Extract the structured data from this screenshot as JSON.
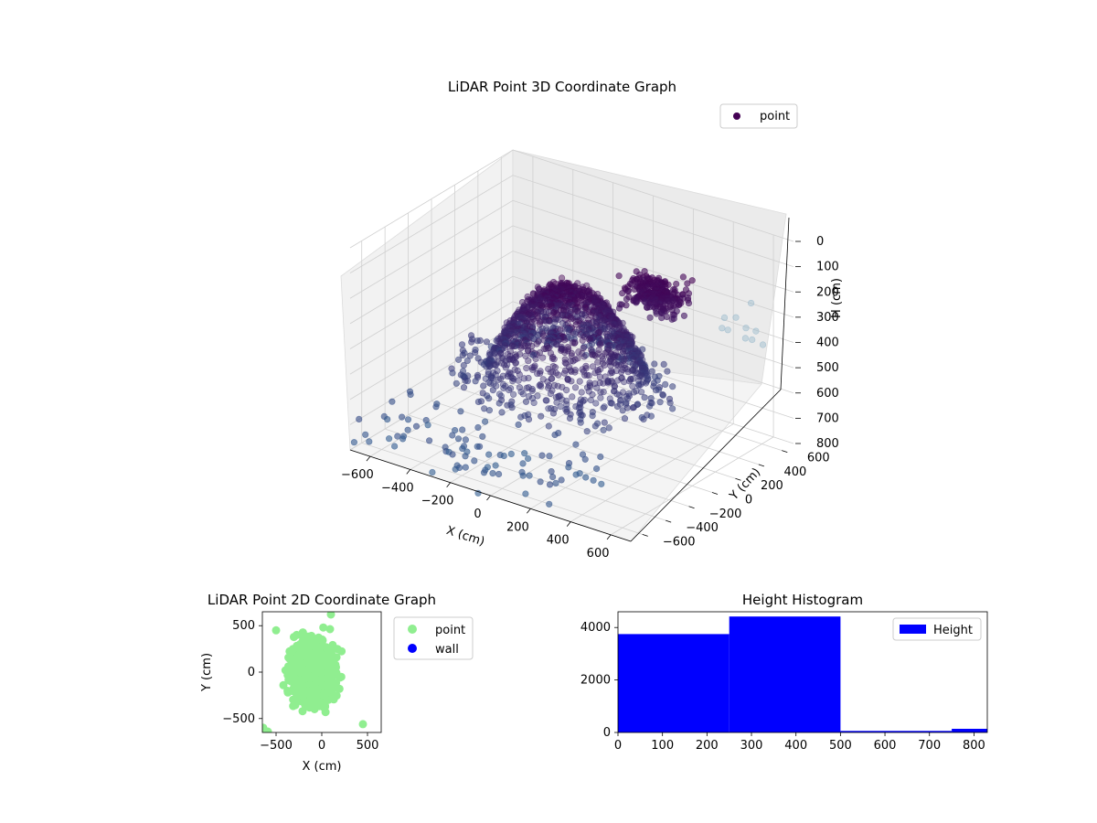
{
  "chart_data": [
    {
      "type": "scatter3d",
      "title": "LiDAR Point 3D Coordinate Graph",
      "xlabel": "X (cm)",
      "ylabel": "Y (cm)",
      "zlabel": "H (cm)",
      "xlim": [
        -700,
        700
      ],
      "ylim": [
        -700,
        700
      ],
      "zlim": [
        800,
        0
      ],
      "xticks": [
        "−600",
        "−400",
        "−200",
        "0",
        "200",
        "400",
        "600"
      ],
      "yticks": [
        "−600",
        "−400",
        "−200",
        "0",
        "200",
        "400",
        "600"
      ],
      "zticks": [
        "0",
        "100",
        "200",
        "300",
        "400",
        "500",
        "600",
        "700",
        "800"
      ],
      "legend": {
        "entries": [
          "point"
        ],
        "placement": "top-right"
      },
      "grid": true,
      "colormap": "viridis",
      "series": [
        {
          "name": "point",
          "color": "#440154",
          "approximate_cloud": "dense dome of points centred near X≈-100, Y≈150, H 300–600 cm, with a denser cluster at X≈200, Y≈400, H≈300, and scattered low points near H≈800 in the X<0, Y<-200 region"
        }
      ]
    },
    {
      "type": "scatter",
      "title": "LiDAR Point 2D Coordinate Graph",
      "xlabel": "X (cm)",
      "ylabel": "Y (cm)",
      "xlim": [
        -650,
        650
      ],
      "ylim": [
        -650,
        650
      ],
      "xticks": [
        "−500",
        "0",
        "500"
      ],
      "yticks": [
        "−500",
        "0",
        "500"
      ],
      "legend": {
        "entries": [
          "point",
          "wall"
        ],
        "placement": "outside-right"
      },
      "series": [
        {
          "name": "point",
          "color": "#90ee90",
          "approximate_extent": {
            "x": [
              -600,
              450
            ],
            "y": [
              -650,
              620
            ]
          }
        },
        {
          "name": "wall",
          "color": "#0000ff",
          "values": []
        }
      ]
    },
    {
      "type": "bar",
      "title": "Height Histogram",
      "xlim": [
        0,
        830
      ],
      "ylim": [
        0,
        4600
      ],
      "xticks": [
        "0",
        "100",
        "200",
        "300",
        "400",
        "500",
        "600",
        "700",
        "800"
      ],
      "yticks": [
        "0",
        "2000",
        "4000"
      ],
      "legend": {
        "entries": [
          "Height"
        ],
        "placement": "top-right"
      },
      "series": [
        {
          "name": "Height",
          "color": "#0000ff",
          "bins": [
            {
              "from": 0,
              "to": 250,
              "count": 3750
            },
            {
              "from": 250,
              "to": 500,
              "count": 4420
            },
            {
              "from": 500,
              "to": 750,
              "count": 60
            },
            {
              "from": 750,
              "to": 1000,
              "count": 140
            }
          ]
        }
      ]
    }
  ]
}
